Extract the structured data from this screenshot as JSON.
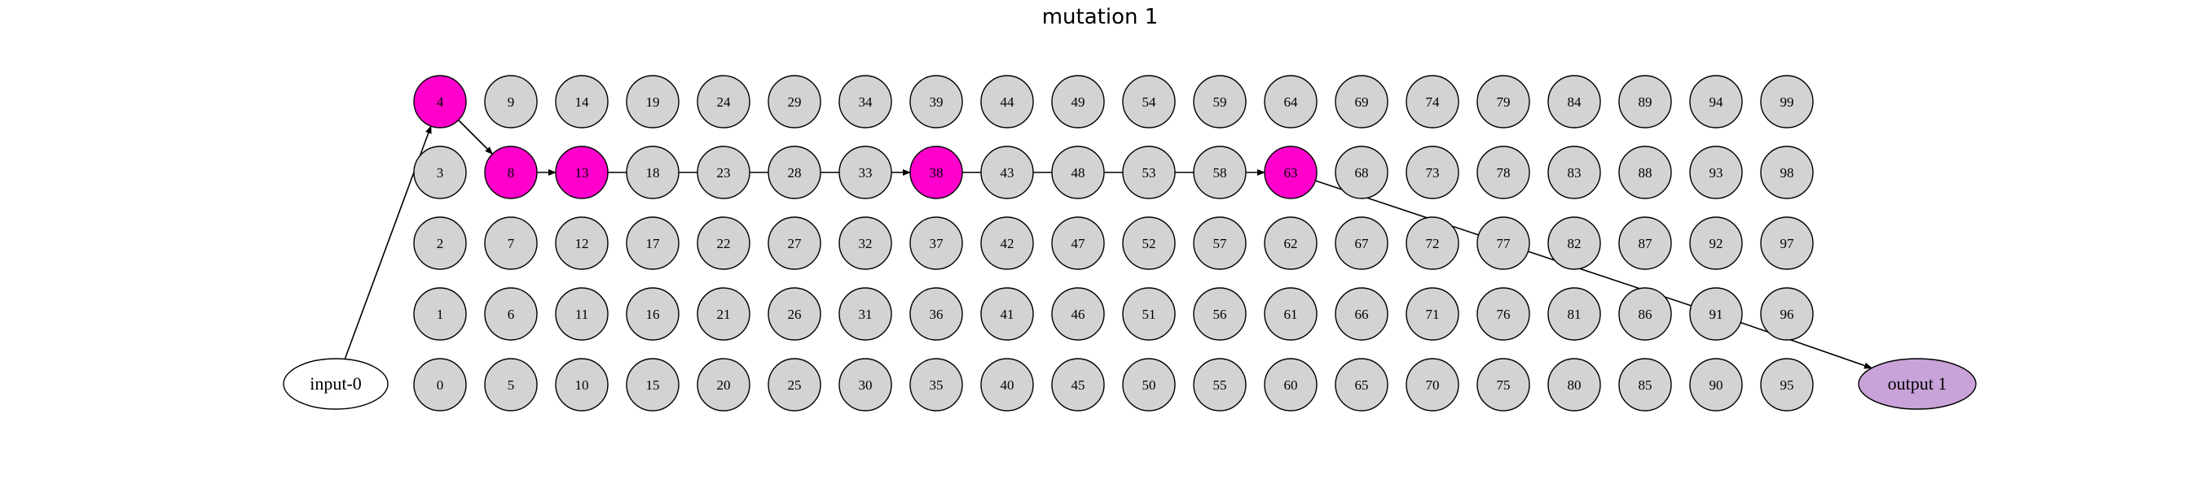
{
  "title": "mutation 1",
  "diagram": {
    "input_label": "input-0",
    "output_label": "output 1",
    "rows": 5,
    "cols": 20,
    "active_nodes": [
      4,
      8,
      13,
      38,
      63
    ],
    "chain": [
      [
        "input",
        4
      ],
      [
        4,
        8
      ],
      [
        8,
        13
      ],
      [
        13,
        18
      ],
      [
        18,
        23
      ],
      [
        23,
        28
      ],
      [
        28,
        33
      ],
      [
        33,
        38
      ],
      [
        38,
        43
      ],
      [
        43,
        48
      ],
      [
        48,
        53
      ],
      [
        53,
        58
      ],
      [
        58,
        63
      ],
      [
        63,
        77
      ],
      [
        77,
        91
      ],
      [
        91,
        "output"
      ]
    ],
    "arrow_edges": [
      [
        "input",
        4
      ],
      [
        4,
        8
      ],
      [
        8,
        13
      ],
      [
        33,
        38
      ],
      [
        58,
        63
      ],
      [
        91,
        "output"
      ]
    ],
    "colors": {
      "node_fill": "#d3d3d3",
      "active_fill": "#ff00cc",
      "output_fill": "#c8a2d8",
      "input_fill": "#ffffff",
      "stroke": "#000000"
    }
  }
}
